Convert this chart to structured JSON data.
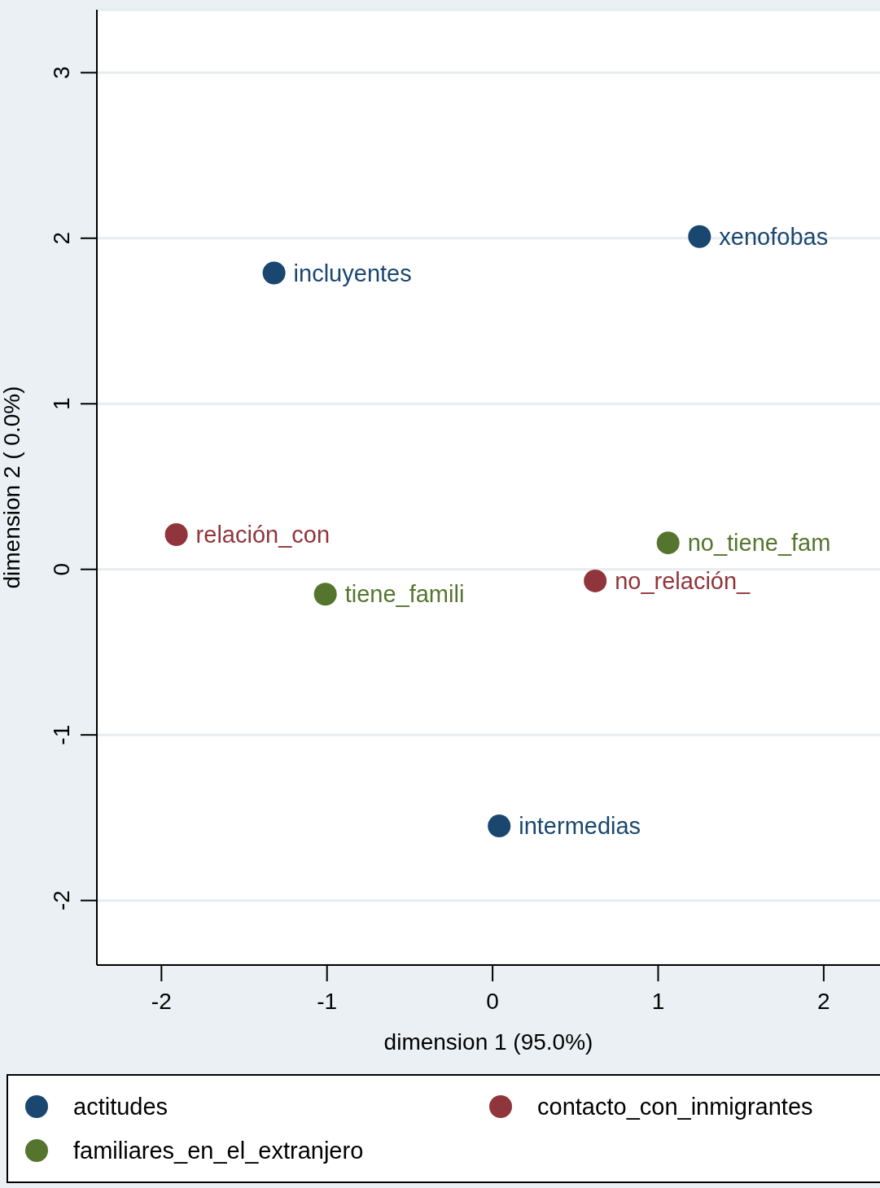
{
  "chart_data": {
    "type": "scatter",
    "xlabel": "dimension 1 (95.0%)",
    "ylabel": "dimension 2 ( 0.0%)",
    "xlim": [
      -2.39,
      2.34
    ],
    "xticks": [
      -2,
      -1,
      0,
      1,
      2
    ],
    "ylim": [
      -2.39,
      3.38
    ],
    "yticks": [
      -2,
      -1,
      0,
      1,
      2,
      3
    ],
    "grid": "y",
    "legend": "bottom",
    "marker": "circle",
    "series": [
      {
        "name": "actitudes",
        "color": "#1a476f",
        "x": [
          -1.32,
          1.25,
          0.04
        ],
        "values": [
          1.79,
          2.01,
          -1.55
        ],
        "value_labels": [
          "incluyentes",
          "xenofobas",
          "intermedias"
        ]
      },
      {
        "name": "contacto_con_inmigrantes",
        "color": "#90353b",
        "x": [
          -1.91,
          0.62
        ],
        "values": [
          0.21,
          -0.07
        ],
        "value_labels": [
          "relación_con",
          "no_relación_"
        ]
      },
      {
        "name": "familiares_en_el_extranjero",
        "color": "#55752f",
        "x": [
          -1.01,
          1.06
        ],
        "values": [
          -0.15,
          0.16
        ],
        "value_labels": [
          "tiene_famili",
          "no_tiene_fam"
        ]
      }
    ]
  }
}
